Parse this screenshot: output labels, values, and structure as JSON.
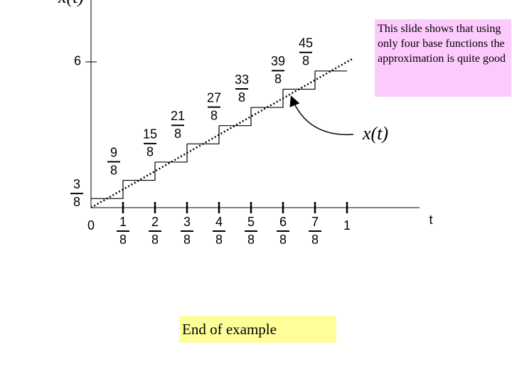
{
  "axes": {
    "y_label": "x(t)",
    "x_label": "t"
  },
  "y_tick": {
    "value": 6,
    "label": "6"
  },
  "x_ticks": [
    {
      "value": 0,
      "label": "0"
    },
    {
      "value": 0.125,
      "num": "1",
      "den": "8"
    },
    {
      "value": 0.25,
      "num": "2",
      "den": "8"
    },
    {
      "value": 0.375,
      "num": "3",
      "den": "8"
    },
    {
      "value": 0.5,
      "num": "4",
      "den": "8"
    },
    {
      "value": 0.625,
      "num": "5",
      "den": "8"
    },
    {
      "value": 0.75,
      "num": "6",
      "den": "8"
    },
    {
      "value": 0.875,
      "num": "7",
      "den": "8"
    },
    {
      "value": 1,
      "label": "1"
    }
  ],
  "steps": [
    {
      "value": 0.375,
      "num": "3",
      "den": "8"
    },
    {
      "value": 1.125,
      "num": "9",
      "den": "8"
    },
    {
      "value": 1.875,
      "num": "15",
      "den": "8"
    },
    {
      "value": 2.625,
      "num": "21",
      "den": "8"
    },
    {
      "value": 3.375,
      "num": "27",
      "den": "8"
    },
    {
      "value": 4.125,
      "num": "33",
      "den": "8"
    },
    {
      "value": 4.875,
      "num": "39",
      "den": "8"
    },
    {
      "value": 5.625,
      "num": "45",
      "den": "8"
    }
  ],
  "line": {
    "label": "x(t)",
    "slope": 6
  },
  "note": "This slide shows that using only four base functions the approximation is quite good",
  "footer": "End of example"
}
